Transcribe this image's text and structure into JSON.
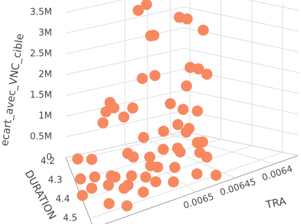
{
  "chart_data": {
    "type": "scatter3d",
    "x_title": "TRA",
    "y_title": "DURATION",
    "z_title": "ecart_avec_VNC_cible",
    "color": "#f7885f",
    "xlim": [
      0.00637,
      0.00663
    ],
    "ylim": [
      4.18,
      4.55
    ],
    "zlim": [
      0,
      3600000
    ],
    "xticks": [
      0.0064,
      0.00645,
      0.0065
    ],
    "yticks": [
      4.2,
      4.3,
      4.4,
      4.5
    ],
    "zticks": [
      0,
      {
        "value": 500000,
        "label": "0.5M"
      },
      {
        "value": 1000000,
        "label": "1M"
      },
      {
        "value": 1500000,
        "label": "1.5M"
      },
      {
        "value": 2000000,
        "label": "2M"
      },
      {
        "value": 2500000,
        "label": "2.5M"
      },
      {
        "value": 3000000,
        "label": "3M"
      },
      {
        "value": 3500000,
        "label": "3.5M"
      }
    ],
    "grid": true,
    "x": [
      0.0065,
      0.00648,
      0.00648,
      0.00647,
      0.0064,
      0.00641,
      0.00638,
      0.00651,
      0.00648,
      0.00642,
      0.00641,
      0.0064,
      0.00644,
      0.00656,
      0.00657,
      0.00655,
      0.00658,
      0.00654,
      0.00653,
      0.00646,
      0.00645,
      0.00643,
      0.00647,
      0.00649,
      0.00646,
      0.00644,
      0.00652,
      0.0065,
      0.00648,
      0.00645,
      0.00643,
      0.00661,
      0.00659,
      0.00662,
      0.0066,
      0.00657,
      0.00658,
      0.00655,
      0.00656,
      0.00661,
      0.00659,
      0.00657,
      0.00654,
      0.00653,
      0.00652,
      0.00651,
      0.0065,
      0.00655,
      0.00648,
      0.00646,
      0.0066,
      0.00658,
      0.00663,
      0.00654,
      0.00652,
      0.00649,
      0.00647,
      0.00653,
      0.0065,
      0.00645
    ],
    "y": [
      4.25,
      4.24,
      4.26,
      4.25,
      4.24,
      4.23,
      4.26,
      4.3,
      4.28,
      4.29,
      4.3,
      4.31,
      4.32,
      4.27,
      4.28,
      4.26,
      4.3,
      4.29,
      4.31,
      4.3,
      4.33,
      4.34,
      4.36,
      4.35,
      4.37,
      4.33,
      4.34,
      4.38,
      4.4,
      4.39,
      4.36,
      4.21,
      4.25,
      4.3,
      4.33,
      4.35,
      4.37,
      4.38,
      4.4,
      4.36,
      4.4,
      4.42,
      4.43,
      4.45,
      4.42,
      4.47,
      4.44,
      4.46,
      4.48,
      4.5,
      4.47,
      4.5,
      4.4,
      4.35,
      4.38,
      4.42,
      4.46,
      4.28,
      4.31,
      4.43
    ],
    "z": [
      3450000,
      3500000,
      2800000,
      2750000,
      2900000,
      2950000,
      2600000,
      2000000,
      1900000,
      1900000,
      1850000,
      1700000,
      1600000,
      1500000,
      1350000,
      1300000,
      1200000,
      1150000,
      1400000,
      1200000,
      1100000,
      1000000,
      900000,
      800000,
      700000,
      600000,
      750000,
      500000,
      400000,
      450000,
      300000,
      50000,
      150000,
      0,
      100000,
      50000,
      200000,
      100000,
      0,
      0,
      150000,
      50000,
      200000,
      100000,
      300000,
      50000,
      250000,
      0,
      100000,
      0,
      50000,
      0,
      100000,
      400000,
      200000,
      600000,
      500000,
      200000,
      100000,
      200000
    ]
  }
}
